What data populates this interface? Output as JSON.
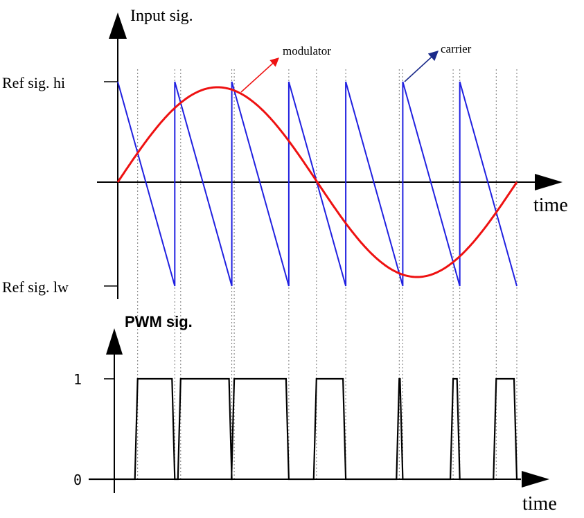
{
  "top_panel": {
    "y_axis_label": "Input sig.",
    "x_axis_label": "time",
    "level_hi_label": "Ref sig. hi",
    "level_lw_label": "Ref sig. lw",
    "modulator_label": "modulator",
    "carrier_label": "carrier"
  },
  "bottom_panel": {
    "y_axis_label": "PWM sig.",
    "x_axis_label": "time",
    "tick_one_label": "1",
    "tick_zero_label": "0"
  },
  "colors": {
    "carrier": "#2020e0",
    "modulator": "#ee1111",
    "axis": "#000000",
    "guide": "#777777"
  },
  "carrier_teeth": 7
}
